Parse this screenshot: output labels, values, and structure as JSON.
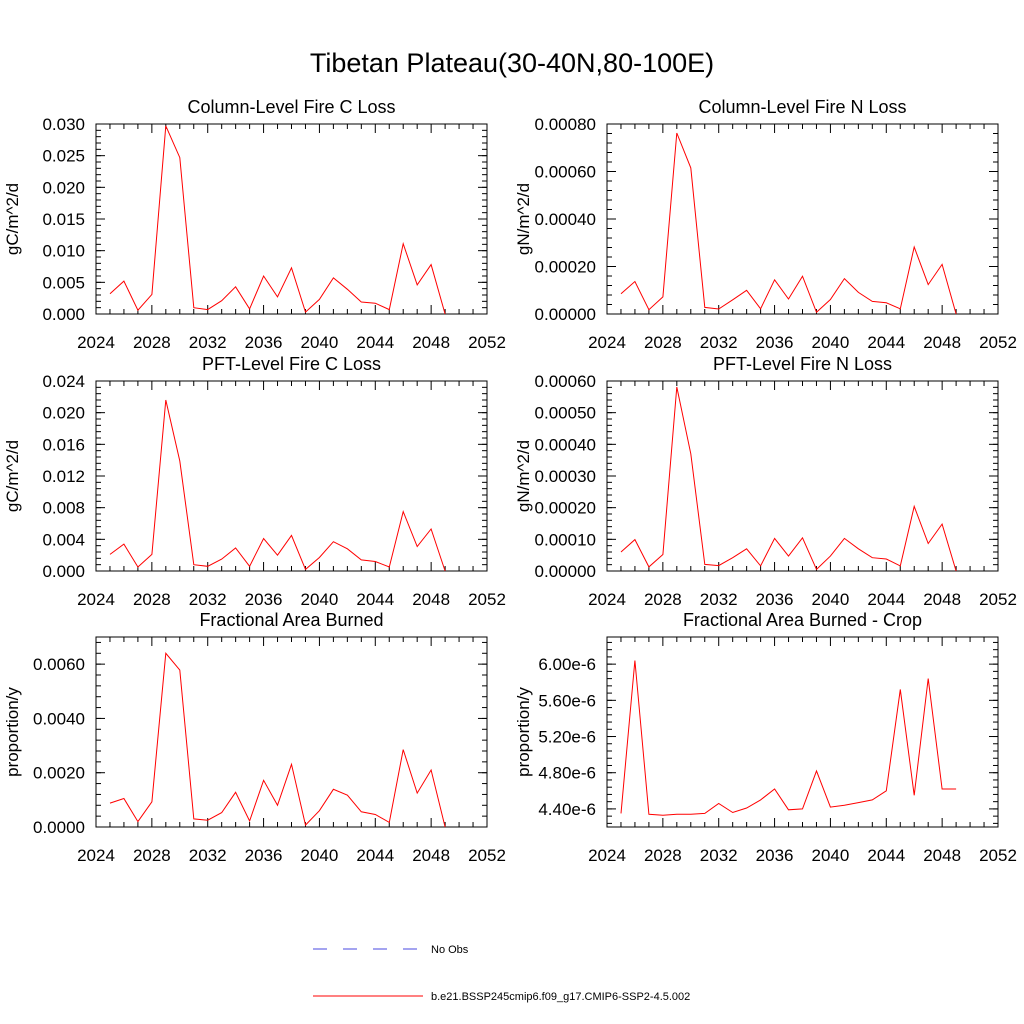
{
  "page": {
    "title": "Tibetan Plateau(30-40N,80-100E)"
  },
  "legend": {
    "entries": [
      {
        "label": "No Obs",
        "color": "#4a4ae0",
        "style": "dashed"
      },
      {
        "label": "b.e21.BSSP245cmip6.f09_g17.CMIP6-SSP2-4.5.002",
        "color": "#ff0000",
        "style": "solid"
      }
    ]
  },
  "chart_data": [
    {
      "type": "line",
      "title": "Column-Level Fire C Loss",
      "ylabel": "gC/m^2/d",
      "xlim": [
        2024,
        2052
      ],
      "ylim": [
        0,
        0.03
      ],
      "xticks": [
        "2024",
        "2028",
        "2032",
        "2036",
        "2040",
        "2044",
        "2048",
        "2052"
      ],
      "yticks": [
        "0.000",
        "0.005",
        "0.010",
        "0.015",
        "0.020",
        "0.025",
        "0.030"
      ],
      "color": "#ff0000",
      "x": [
        2025,
        2026,
        2027,
        2028,
        2029,
        2030,
        2031,
        2032,
        2033,
        2034,
        2035,
        2036,
        2037,
        2038,
        2039,
        2040,
        2041,
        2042,
        2043,
        2044,
        2045,
        2046,
        2047,
        2048,
        2049
      ],
      "values": [
        0.0032,
        0.0052,
        0.0006,
        0.0031,
        0.0297,
        0.0247,
        0.001,
        0.0007,
        0.0021,
        0.0043,
        0.0008,
        0.006,
        0.0027,
        0.0073,
        0.0003,
        0.0023,
        0.0057,
        0.0039,
        0.0019,
        0.0017,
        0.0007,
        0.0111,
        0.0046,
        0.0078,
        0.0
      ]
    },
    {
      "type": "line",
      "title": "Column-Level Fire N Loss",
      "ylabel": "gN/m^2/d",
      "xlim": [
        2024,
        2052
      ],
      "ylim": [
        0,
        0.0008
      ],
      "xticks": [
        "2024",
        "2028",
        "2032",
        "2036",
        "2040",
        "2044",
        "2048",
        "2052"
      ],
      "yticks": [
        "0.00000",
        "0.00020",
        "0.00040",
        "0.00060",
        "0.00080"
      ],
      "color": "#ff0000",
      "x": [
        2025,
        2026,
        2027,
        2028,
        2029,
        2030,
        2031,
        2032,
        2033,
        2034,
        2035,
        2036,
        2037,
        2038,
        2039,
        2040,
        2041,
        2042,
        2043,
        2044,
        2045,
        2046,
        2047,
        2048,
        2049
      ],
      "values": [
        8.5e-05,
        0.000137,
        1.8e-05,
        7.2e-05,
        0.000762,
        0.000615,
        2.8e-05,
        2.1e-05,
        6e-05,
        0.0001,
        2.2e-05,
        0.000144,
        6.3e-05,
        0.000159,
        7e-06,
        6.1e-05,
        0.000149,
        9.1e-05,
        5.3e-05,
        4.7e-05,
        2.2e-05,
        0.000282,
        0.000124,
        0.000209,
        0.0
      ]
    },
    {
      "type": "line",
      "title": "PFT-Level Fire C Loss",
      "ylabel": "gC/m^2/d",
      "xlim": [
        2024,
        2052
      ],
      "ylim": [
        0,
        0.024
      ],
      "xticks": [
        "2024",
        "2028",
        "2032",
        "2036",
        "2040",
        "2044",
        "2048",
        "2052"
      ],
      "yticks": [
        "0.000",
        "0.004",
        "0.008",
        "0.012",
        "0.016",
        "0.020",
        "0.024"
      ],
      "color": "#ff0000",
      "x": [
        2025,
        2026,
        2027,
        2028,
        2029,
        2030,
        2031,
        2032,
        2033,
        2034,
        2035,
        2036,
        2037,
        2038,
        2039,
        2040,
        2041,
        2042,
        2043,
        2044,
        2045,
        2046,
        2047,
        2048,
        2049
      ],
      "values": [
        0.0021,
        0.0034,
        0.0005,
        0.0021,
        0.0216,
        0.0139,
        0.0008,
        0.0006,
        0.0015,
        0.0029,
        0.0006,
        0.0041,
        0.002,
        0.0045,
        0.0002,
        0.0017,
        0.0037,
        0.0028,
        0.0014,
        0.0012,
        0.0005,
        0.0075,
        0.0031,
        0.0053,
        0.0
      ]
    },
    {
      "type": "line",
      "title": "PFT-Level Fire N Loss",
      "ylabel": "gN/m^2/d",
      "xlim": [
        2024,
        2052
      ],
      "ylim": [
        0,
        0.0006
      ],
      "xticks": [
        "2024",
        "2028",
        "2032",
        "2036",
        "2040",
        "2044",
        "2048",
        "2052"
      ],
      "yticks": [
        "0.00000",
        "0.00010",
        "0.00020",
        "0.00030",
        "0.00040",
        "0.00050",
        "0.00060"
      ],
      "color": "#ff0000",
      "x": [
        2025,
        2026,
        2027,
        2028,
        2029,
        2030,
        2031,
        2032,
        2033,
        2034,
        2035,
        2036,
        2037,
        2038,
        2039,
        2040,
        2041,
        2042,
        2043,
        2044,
        2045,
        2046,
        2047,
        2048,
        2049
      ],
      "values": [
        6e-05,
        9.9e-05,
        1.3e-05,
        5.2e-05,
        0.000581,
        0.00037,
        2.1e-05,
        1.7e-05,
        4.2e-05,
        7e-05,
        1.6e-05,
        0.000103,
        4.7e-05,
        0.000105,
        5e-06,
        4.7e-05,
        0.000103,
        7e-05,
        4.2e-05,
        3.8e-05,
        1.6e-05,
        0.000204,
        8.7e-05,
        0.000148,
        0.0
      ]
    },
    {
      "type": "line",
      "title": "Fractional Area Burned",
      "ylabel": "proportion/y",
      "xlim": [
        2024,
        2052
      ],
      "ylim": [
        0,
        0.007
      ],
      "xticks": [
        "2024",
        "2028",
        "2032",
        "2036",
        "2040",
        "2044",
        "2048",
        "2052"
      ],
      "yticks": [
        "0.0000",
        "0.0020",
        "0.0040",
        "0.0060"
      ],
      "color": "#ff0000",
      "x": [
        2025,
        2026,
        2027,
        2028,
        2029,
        2030,
        2031,
        2032,
        2033,
        2034,
        2035,
        2036,
        2037,
        2038,
        2039,
        2040,
        2041,
        2042,
        2043,
        2044,
        2045,
        2046,
        2047,
        2048,
        2049
      ],
      "values": [
        0.00088,
        0.00105,
        0.0002,
        0.00093,
        0.0064,
        0.00578,
        0.0003,
        0.00025,
        0.00053,
        0.00128,
        0.00022,
        0.00172,
        0.0008,
        0.00231,
        7e-05,
        0.0006,
        0.00139,
        0.00117,
        0.00056,
        0.00046,
        0.00017,
        0.00285,
        0.00125,
        0.0021,
        0.0
      ]
    },
    {
      "type": "line",
      "title": "Fractional Area Burned - Crop",
      "ylabel": "proportion/y",
      "xlim": [
        2024,
        2052
      ],
      "ylim": [
        4.2e-06,
        6.3e-06
      ],
      "xticks": [
        "2024",
        "2028",
        "2032",
        "2036",
        "2040",
        "2044",
        "2048",
        "2052"
      ],
      "yticks": [
        "4.40e-6",
        "4.80e-6",
        "5.20e-6",
        "5.60e-6",
        "6.00e-6"
      ],
      "yticks_values": [
        4.4e-06,
        4.8e-06,
        5.2e-06,
        5.6e-06,
        6e-06
      ],
      "color": "#ff0000",
      "x": [
        2025,
        2026,
        2027,
        2028,
        2029,
        2030,
        2031,
        2032,
        2033,
        2034,
        2035,
        2036,
        2037,
        2038,
        2039,
        2040,
        2041,
        2042,
        2043,
        2044,
        2045,
        2046,
        2047,
        2048,
        2049
      ],
      "values": [
        4.35e-06,
        6.04e-06,
        4.34e-06,
        4.33e-06,
        4.34e-06,
        4.34e-06,
        4.35e-06,
        4.46e-06,
        4.36e-06,
        4.41e-06,
        4.5e-06,
        4.62e-06,
        4.39e-06,
        4.4e-06,
        4.82e-06,
        4.42e-06,
        4.44e-06,
        4.47e-06,
        4.5e-06,
        4.6e-06,
        5.72e-06,
        4.55e-06,
        5.84e-06,
        4.62e-06,
        4.62e-06
      ]
    }
  ]
}
